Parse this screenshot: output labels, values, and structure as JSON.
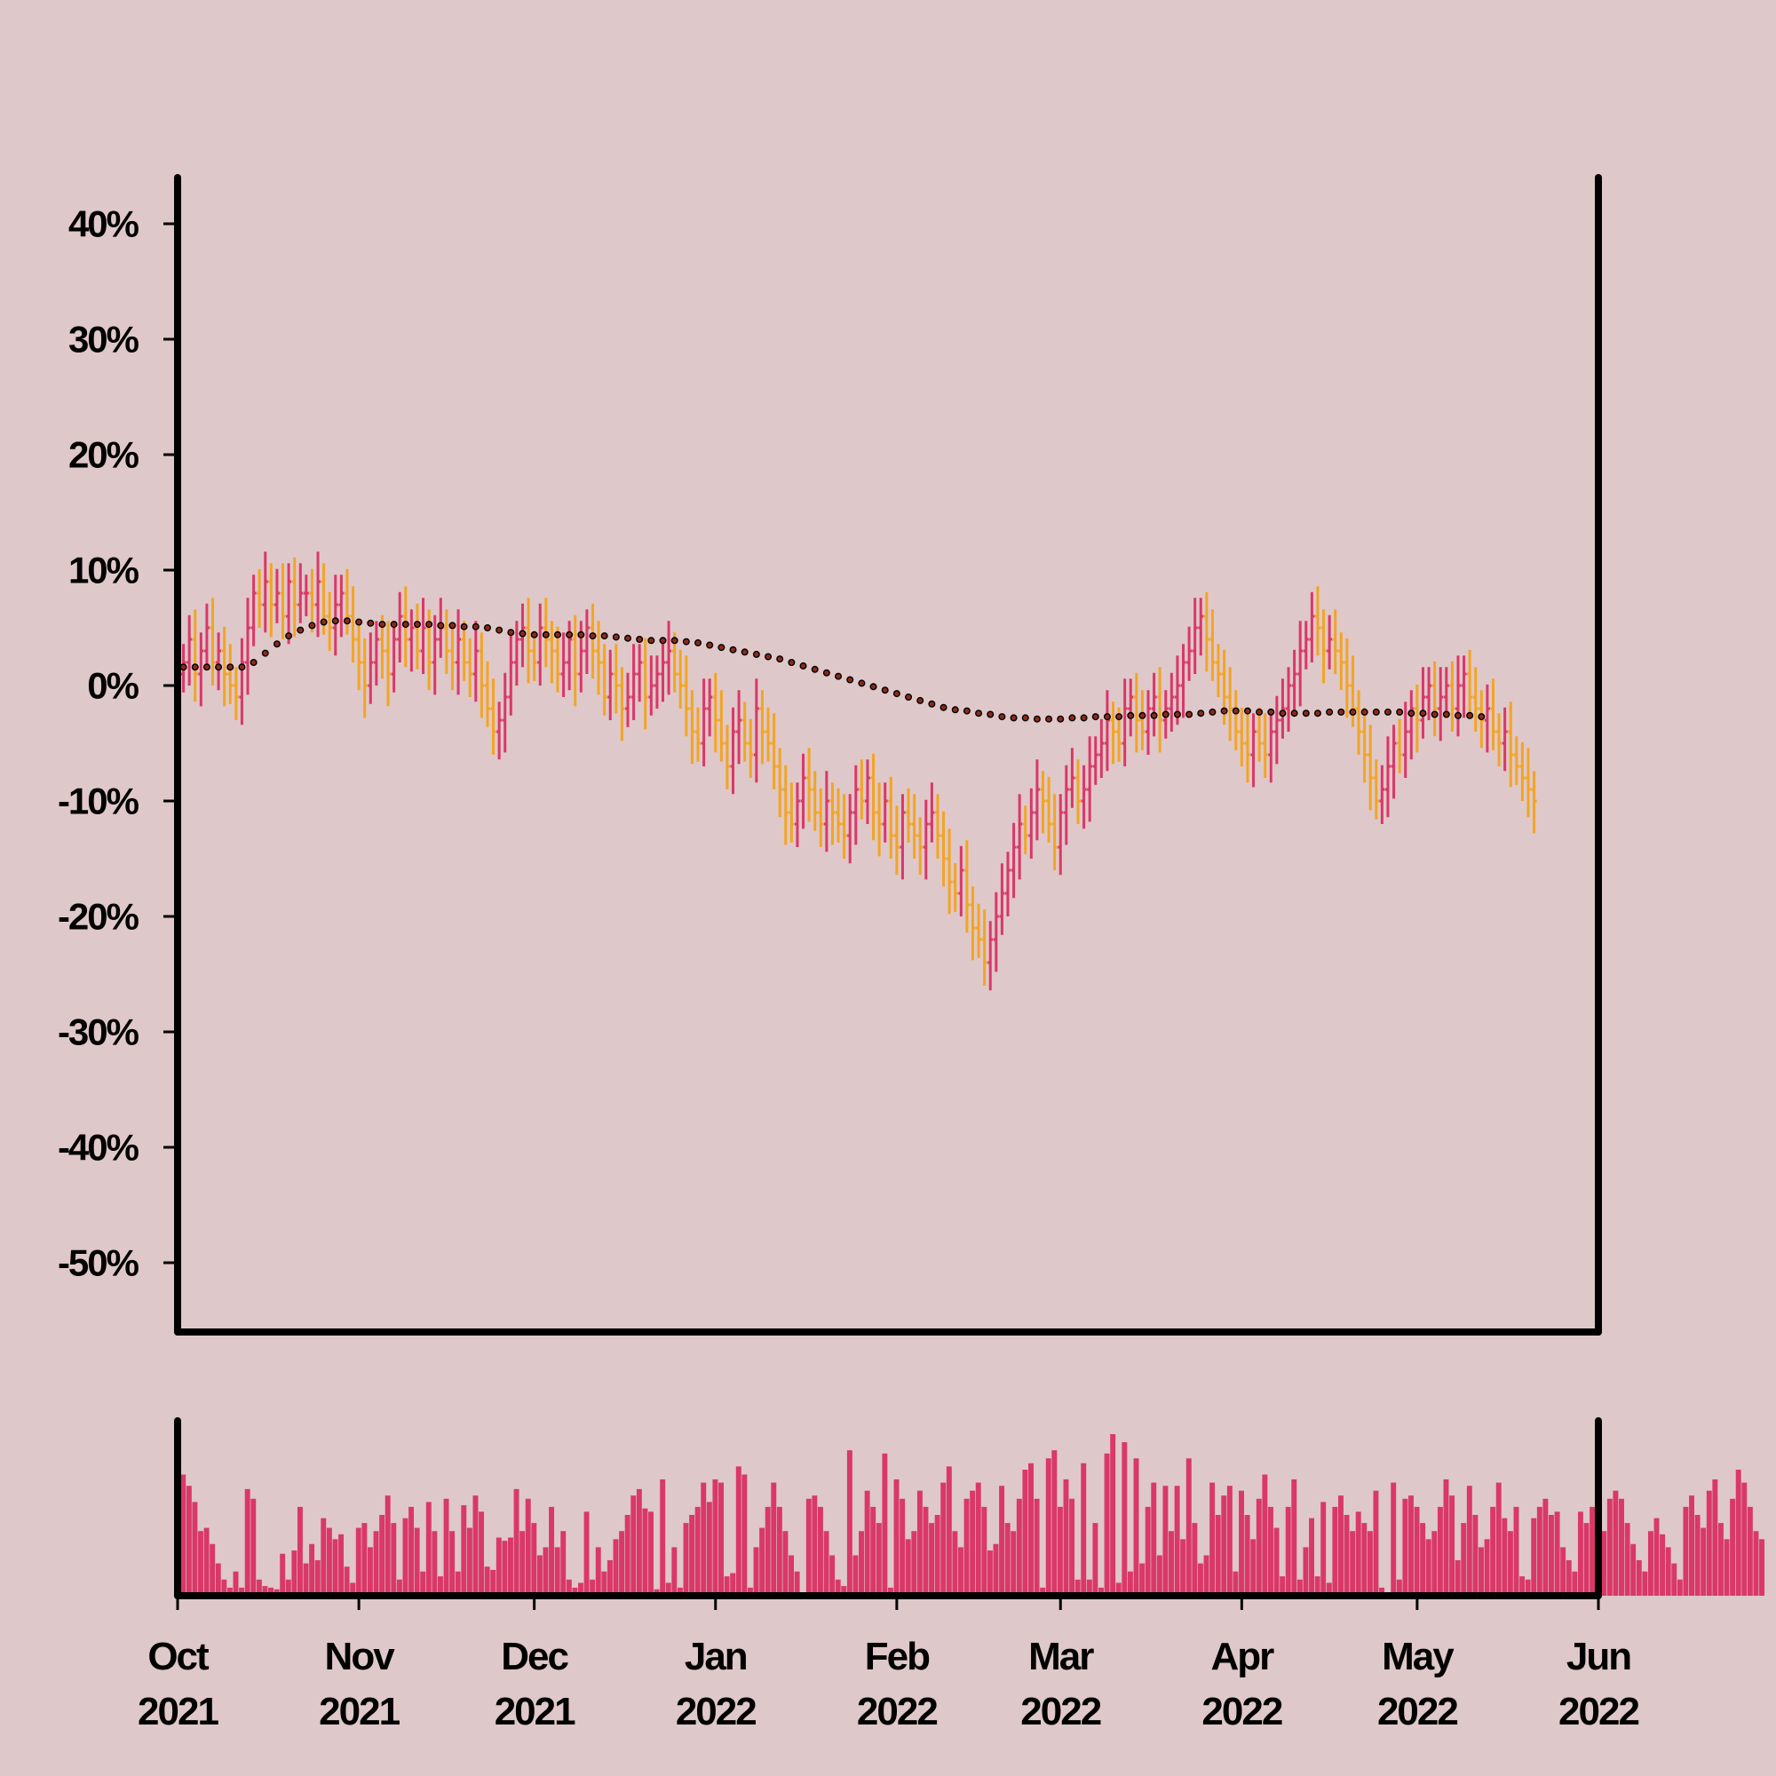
{
  "colors": {
    "background": "#dfc8c9",
    "axis": "#000000",
    "up": "#d93868",
    "down": "#f2a524",
    "volume": "#d93868",
    "trend_fill": "#8b2a1a",
    "trend_stroke": "#000000"
  },
  "chart_data": {
    "type": "ohlc",
    "y_unit": "%",
    "ylim": [
      -56,
      44
    ],
    "yticks": [
      {
        "value": 40,
        "label": "40%"
      },
      {
        "value": 30,
        "label": "30%"
      },
      {
        "value": 20,
        "label": "20%"
      },
      {
        "value": 10,
        "label": "10%"
      },
      {
        "value": 0,
        "label": "0%"
      },
      {
        "value": -10,
        "label": "-10%"
      },
      {
        "value": -20,
        "label": "-20%"
      },
      {
        "value": -30,
        "label": "-30%"
      },
      {
        "value": -40,
        "label": "-40%"
      },
      {
        "value": -50,
        "label": "-50%"
      }
    ],
    "xrange": [
      "2021-10-01",
      "2022-06-01"
    ],
    "xticks": [
      {
        "date": "2021-10-01",
        "line1": "Oct",
        "line2": "2021"
      },
      {
        "date": "2021-11-01",
        "line1": "Nov",
        "line2": "2021"
      },
      {
        "date": "2021-12-01",
        "line1": "Dec",
        "line2": "2021"
      },
      {
        "date": "2022-01-01",
        "line1": "Jan",
        "line2": "2022"
      },
      {
        "date": "2022-02-01",
        "line1": "Feb",
        "line2": "2022"
      },
      {
        "date": "2022-03-01",
        "line1": "Mar",
        "line2": "2022"
      },
      {
        "date": "2022-04-01",
        "line1": "Apr",
        "line2": "2022"
      },
      {
        "date": "2022-05-01",
        "line1": "May",
        "line2": "2022"
      },
      {
        "date": "2022-06-01",
        "line1": "Jun",
        "line2": "2022"
      }
    ],
    "close_series": {
      "start": "2021-10-02",
      "values": [
        2,
        4,
        1,
        3,
        5,
        2,
        3,
        1,
        0,
        -1,
        2,
        5,
        8,
        7,
        9,
        7,
        8,
        6,
        9,
        7,
        8,
        8,
        7,
        9,
        6,
        5,
        7,
        8,
        6,
        4,
        2,
        0,
        2,
        4,
        3,
        1,
        4,
        6,
        4,
        5,
        3,
        5,
        2,
        4,
        5,
        3,
        2,
        4,
        2,
        1,
        3,
        0,
        -2,
        -4,
        -3,
        -1,
        2,
        4,
        5,
        3,
        2,
        5,
        4,
        3,
        1,
        2,
        4,
        1,
        3,
        5,
        3,
        2,
        -1,
        1,
        0,
        -2,
        -1,
        1,
        2,
        -1,
        0,
        1,
        2,
        3,
        1,
        0,
        -2,
        -4,
        -5,
        -2,
        -1,
        -3,
        -5,
        -7,
        -4,
        -3,
        -5,
        -6,
        -2,
        -4,
        -5,
        -7,
        -9,
        -11,
        -12,
        -10,
        -8,
        -9,
        -11,
        -12,
        -10,
        -11,
        -12,
        -13,
        -11,
        -9,
        -10,
        -8,
        -11,
        -12,
        -10,
        -13,
        -14,
        -11,
        -12,
        -13,
        -14,
        -12,
        -11,
        -13,
        -15,
        -17,
        -18,
        -16,
        -19,
        -21,
        -22,
        -24,
        -22,
        -20,
        -18,
        -16,
        -14,
        -12,
        -13,
        -11,
        -9,
        -10,
        -12,
        -14,
        -11,
        -9,
        -8,
        -10,
        -9,
        -7,
        -6,
        -5,
        -3,
        -4,
        -5,
        -2,
        -1,
        -3,
        -4,
        -2,
        -1,
        -3,
        -2,
        -1,
        0,
        2,
        3,
        5,
        6,
        4,
        2,
        1,
        -1,
        -2,
        -4,
        -5,
        -6,
        -4,
        -5,
        -6,
        -4,
        -3,
        -2,
        0,
        1,
        3,
        4,
        6,
        5,
        3,
        4,
        3,
        2,
        0,
        -2,
        -4,
        -6,
        -8,
        -10,
        -9,
        -7,
        -5,
        -6,
        -4,
        -2,
        -3,
        -1,
        0,
        -2,
        -1,
        0,
        -2,
        0,
        1,
        -1,
        -2,
        -3,
        -2,
        -4,
        -5,
        -4,
        -6,
        -7,
        -8,
        -9,
        -10
      ]
    },
    "trend_series": {
      "start": "2021-10-02",
      "every_days": 2,
      "values": [
        1.6,
        1.6,
        1.6,
        1.6,
        1.6,
        1.6,
        2.0,
        2.8,
        3.6,
        4.3,
        4.8,
        5.2,
        5.5,
        5.6,
        5.6,
        5.5,
        5.4,
        5.3,
        5.3,
        5.3,
        5.3,
        5.3,
        5.2,
        5.2,
        5.1,
        5.1,
        5.0,
        4.8,
        4.6,
        4.5,
        4.4,
        4.4,
        4.4,
        4.4,
        4.4,
        4.3,
        4.3,
        4.2,
        4.1,
        4.0,
        3.9,
        3.9,
        3.9,
        3.8,
        3.7,
        3.5,
        3.3,
        3.1,
        2.9,
        2.7,
        2.5,
        2.3,
        2.0,
        1.7,
        1.4,
        1.1,
        0.8,
        0.5,
        0.2,
        -0.1,
        -0.4,
        -0.7,
        -1.0,
        -1.3,
        -1.6,
        -1.9,
        -2.1,
        -2.2,
        -2.4,
        -2.5,
        -2.7,
        -2.8,
        -2.8,
        -2.9,
        -2.9,
        -2.9,
        -2.8,
        -2.8,
        -2.7,
        -2.7,
        -2.7,
        -2.6,
        -2.6,
        -2.6,
        -2.5,
        -2.5,
        -2.5,
        -2.4,
        -2.3,
        -2.2,
        -2.2,
        -2.2,
        -2.3,
        -2.3,
        -2.4,
        -2.4,
        -2.4,
        -2.4,
        -2.3,
        -2.3,
        -2.3,
        -2.3,
        -2.3,
        -2.3,
        -2.3,
        -2.4,
        -2.4,
        -2.5,
        -2.5,
        -2.6,
        -2.6,
        -2.7
      ]
    },
    "volume_series": {
      "start": "2021-10-02",
      "values": [
        0.75,
        0.68,
        0.58,
        0.4,
        0.42,
        0.32,
        0.2,
        0.1,
        0.05,
        0.15,
        0.05,
        0.66,
        0.6,
        0.1,
        0.06,
        0.05,
        0.04,
        0.26,
        0.1,
        0.28,
        0.55,
        0.2,
        0.32,
        0.22,
        0.48,
        0.42,
        0.35,
        0.38,
        0.18,
        0.08,
        0.42,
        0.45,
        0.3,
        0.4,
        0.5,
        0.62,
        0.45,
        0.1,
        0.48,
        0.55,
        0.42,
        0.15,
        0.58,
        0.4,
        0.12,
        0.6,
        0.4,
        0.15,
        0.56,
        0.42,
        0.62,
        0.52,
        0.18,
        0.16,
        0.36,
        0.34,
        0.36,
        0.66,
        0.4,
        0.6,
        0.45,
        0.25,
        0.3,
        0.55,
        0.3,
        0.4,
        0.1,
        0.05,
        0.08,
        0.52,
        0.1,
        0.3,
        0.15,
        0.22,
        0.35,
        0.4,
        0.5,
        0.62,
        0.66,
        0.54,
        0.52,
        0.04,
        0.72,
        0.08,
        0.3,
        0.05,
        0.45,
        0.5,
        0.55,
        0.7,
        0.58,
        0.72,
        0.7,
        0.12,
        0.14,
        0.8,
        0.75,
        0.05,
        0.3,
        0.42,
        0.55,
        0.7,
        0.55,
        0.4,
        0.25,
        0.15,
        0.02,
        0.6,
        0.62,
        0.55,
        0.4,
        0.25,
        0.1,
        0.06,
        0.9,
        0.25,
        0.4,
        0.65,
        0.55,
        0.45,
        0.88,
        0.05,
        0.72,
        0.6,
        0.35,
        0.4,
        0.65,
        0.55,
        0.45,
        0.5,
        0.7,
        0.8,
        0.4,
        0.3,
        0.6,
        0.65,
        0.7,
        0.55,
        0.28,
        0.32,
        0.68,
        0.45,
        0.4,
        0.6,
        0.78,
        0.82,
        0.6,
        0.05,
        0.85,
        0.9,
        0.55,
        0.72,
        0.6,
        0.1,
        0.82,
        0.1,
        0.45,
        0.05,
        0.88,
        1.0,
        0.08,
        0.95,
        0.15,
        0.85,
        0.2,
        0.55,
        0.7,
        0.25,
        0.68,
        0.4,
        0.68,
        0.35,
        0.85,
        0.45,
        0.2,
        0.25,
        0.7,
        0.5,
        0.62,
        0.68,
        0.15,
        0.65,
        0.5,
        0.35,
        0.6,
        0.75,
        0.55,
        0.42,
        0.12,
        0.55,
        0.72,
        0.1,
        0.3,
        0.48,
        0.12,
        0.58,
        0.08,
        0.55,
        0.62,
        0.5,
        0.4,
        0.52,
        0.45,
        0.4,
        0.65,
        0.05,
        0.02,
        0.7,
        0.1,
        0.6,
        0.62,
        0.55,
        0.45,
        0.35,
        0.4,
        0.55,
        0.72,
        0.62,
        0.22,
        0.45,
        0.68,
        0.5,
        0.3,
        0.35,
        0.55,
        0.7,
        0.48,
        0.4,
        0.55,
        0.12,
        0.1,
        0.48,
        0.55,
        0.6,
        0.5,
        0.52,
        0.3,
        0.22,
        0.15,
        0.52,
        0.45,
        0.55,
        0.12,
        0.4,
        0.6,
        0.65,
        0.6,
        0.45,
        0.32,
        0.22,
        0.15,
        0.4,
        0.48,
        0.38,
        0.3,
        0.2,
        0.1,
        0.55,
        0.62,
        0.5,
        0.42,
        0.65,
        0.72,
        0.45,
        0.35,
        0.6,
        0.78,
        0.7,
        0.55,
        0.4,
        0.35
      ]
    }
  }
}
